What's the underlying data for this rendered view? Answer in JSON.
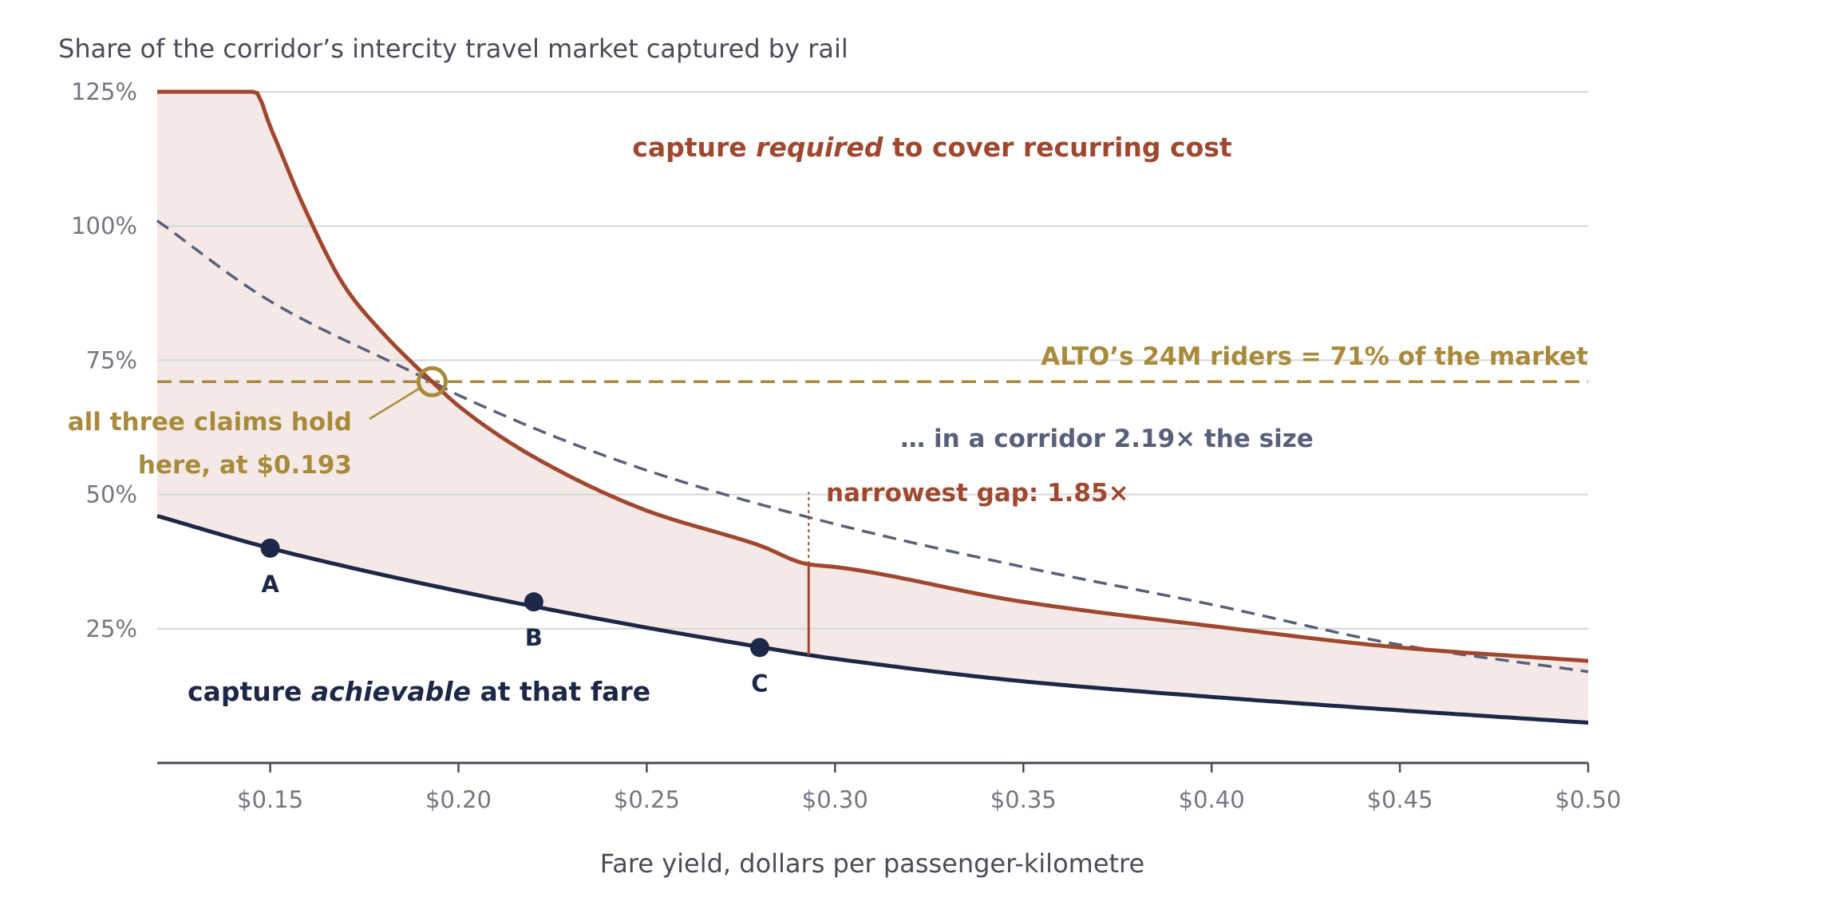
{
  "chart_data": {
    "type": "line",
    "title": "Share of the corridor’s intercity travel market captured by rail",
    "xlabel": "Fare yield, dollars per passenger-kilometre",
    "ylabel": "",
    "xlim": [
      0.12,
      0.5
    ],
    "ylim": [
      0,
      125
    ],
    "x_ticks": [
      0.15,
      0.2,
      0.25,
      0.3,
      0.35,
      0.4,
      0.45,
      0.5
    ],
    "x_tick_labels": [
      "$0.15",
      "$0.20",
      "$0.25",
      "$0.30",
      "$0.35",
      "$0.40",
      "$0.45",
      "$0.50"
    ],
    "y_ticks": [
      25,
      50,
      75,
      100,
      125
    ],
    "y_tick_labels": [
      "25%",
      "50%",
      "75%",
      "100%",
      "125%"
    ],
    "grid": "horizontal",
    "series": [
      {
        "name": "capture required to cover recurring cost",
        "color": "#a0472f",
        "style": "solid",
        "cap": 125,
        "x": [
          0.12,
          0.146,
          0.15,
          0.16,
          0.17,
          0.18,
          0.193,
          0.2,
          0.22,
          0.25,
          0.28,
          0.293,
          0.3,
          0.35,
          0.4,
          0.45,
          0.5
        ],
        "y": [
          125,
          125,
          118.5,
          102,
          88.5,
          80,
          71,
          66.5,
          57,
          47,
          40.5,
          37,
          36.5,
          30,
          25.5,
          21.5,
          19
        ]
      },
      {
        "name": "… in a corridor 2.19× the size",
        "color": "#59607a",
        "style": "dashed",
        "x": [
          0.12,
          0.15,
          0.193,
          0.2,
          0.25,
          0.3,
          0.35,
          0.4,
          0.45,
          0.5
        ],
        "y": [
          101,
          86,
          71,
          68.5,
          54.5,
          44.5,
          36.5,
          29.5,
          22,
          17
        ]
      },
      {
        "name": "capture achievable at that fare",
        "color": "#1d2747",
        "style": "solid",
        "x": [
          0.12,
          0.15,
          0.2,
          0.25,
          0.28,
          0.293,
          0.3,
          0.35,
          0.4,
          0.45,
          0.5
        ],
        "y": [
          46,
          40,
          32,
          25.2,
          21.6,
          20.1,
          19.4,
          15.2,
          12.3,
          9.8,
          7.5
        ]
      }
    ],
    "reference_line": {
      "y": 71,
      "label": "ALTO’s 24M riders = 71% of the market",
      "color": "#a88a3b"
    },
    "points": [
      {
        "label": "A",
        "x": 0.15,
        "y": 40
      },
      {
        "label": "B",
        "x": 0.22,
        "y": 30
      },
      {
        "label": "C",
        "x": 0.28,
        "y": 21.5
      }
    ],
    "intersection": {
      "x": 0.193,
      "y": 71,
      "label_line1": "all three claims hold",
      "label_line2": "here, at $0.193"
    },
    "gap": {
      "x": 0.293,
      "y_low": 20.1,
      "y_high": 37,
      "y_marker_top": 50.5,
      "label": "narrowest gap: 1.85×"
    },
    "annotations": {
      "required_prefix": "capture ",
      "required_emph": "required",
      "required_suffix": " to cover recurring cost",
      "achievable_prefix": "capture ",
      "achievable_emph": "achievable",
      "achievable_suffix": " at that fare",
      "corridor": "… in a corridor 2.19× the size"
    },
    "colors": {
      "required": "#a0472f",
      "achievable": "#1d2747",
      "corridor": "#59607a",
      "reference": "#a88a3b",
      "fill": "#f5e9e7",
      "grid": "#d7d7d7",
      "axis": "#4a4d57"
    }
  }
}
